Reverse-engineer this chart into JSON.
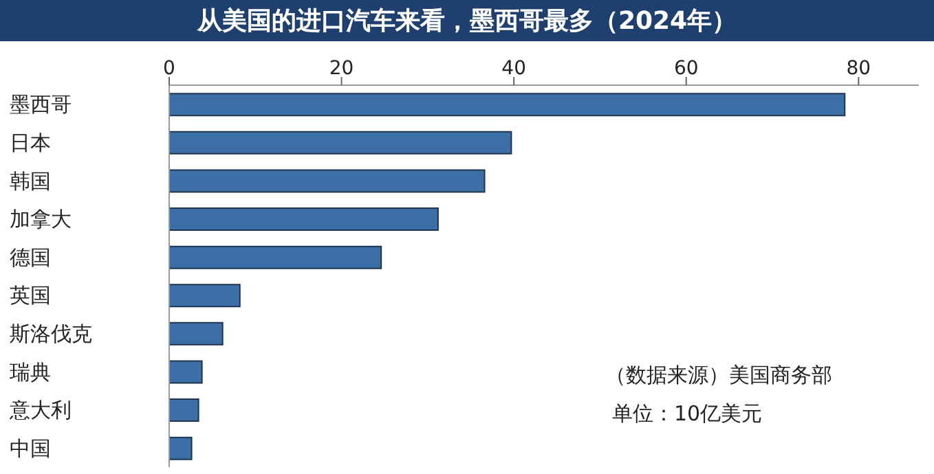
{
  "chart_data": {
    "type": "bar",
    "orientation": "horizontal",
    "title": "从美国的进口汽车来看，墨西哥最多（2024年）",
    "categories": [
      "墨西哥",
      "日本",
      "韩国",
      "加拿大",
      "德国",
      "英国",
      "斯洛伐克",
      "瑞典",
      "意大利",
      "中国"
    ],
    "values": [
      78.4,
      39.7,
      36.6,
      31.2,
      24.6,
      8.2,
      6.2,
      3.8,
      3.4,
      2.6
    ],
    "color": "#3b6fa6",
    "xlim": [
      0,
      87
    ],
    "xticks": [
      0,
      20,
      40,
      60,
      80
    ],
    "annotations": [
      "（数据来源）美国商务部",
      "单位：10亿美元"
    ]
  }
}
